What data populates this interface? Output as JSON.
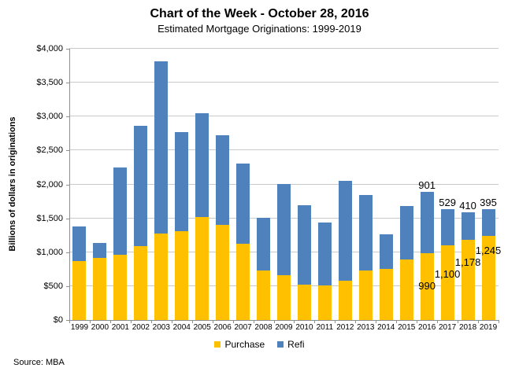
{
  "title": "Chart of the Week - October 28, 2016",
  "subtitle": "Estimated Mortgage Originations: 1999-2019",
  "source": "Source: MBA",
  "colors": {
    "purchase": "#FFC000",
    "refi": "#4F81BD",
    "gridline": "#C9C9C9",
    "axis": "#8E8E8E",
    "text": "#000000"
  },
  "legend": {
    "purchase_label": "Purchase",
    "refi_label": "Refi"
  },
  "chart_data": {
    "type": "bar",
    "stacked": true,
    "title": "Chart of the Week - October 28, 2016",
    "subtitle": "Estimated Mortgage Originations: 1999-2019",
    "xlabel": "",
    "ylabel": "Billions of dollars in originations",
    "ylim": [
      0,
      4000
    ],
    "ytick_interval": 500,
    "ytick_labels": [
      "$0",
      "$500",
      "$1,000",
      "$1,500",
      "$2,000",
      "$2,500",
      "$3,000",
      "$3,500",
      "$4,000"
    ],
    "grid": true,
    "legend_position": "bottom",
    "categories": [
      "1999",
      "2000",
      "2001",
      "2002",
      "2003",
      "2004",
      "2005",
      "2006",
      "2007",
      "2008",
      "2009",
      "2010",
      "2011",
      "2012",
      "2013",
      "2014",
      "2015",
      "2016",
      "2017",
      "2018",
      "2019"
    ],
    "series": [
      {
        "name": "Purchase",
        "color": "#FFC000",
        "values": [
          875,
          915,
          965,
          1095,
          1270,
          1310,
          1520,
          1405,
          1130,
          725,
          660,
          520,
          505,
          585,
          730,
          755,
          895,
          990,
          1100,
          1178,
          1245
        ]
      },
      {
        "name": "Refi",
        "color": "#4F81BD",
        "values": [
          500,
          225,
          1280,
          1770,
          2550,
          1465,
          1525,
          1325,
          1180,
          785,
          1345,
          1175,
          930,
          1470,
          1115,
          505,
          785,
          901,
          529,
          410,
          395
        ]
      }
    ],
    "annotations": {
      "refi_labels": [
        {
          "category": "2016",
          "text": "901"
        },
        {
          "category": "2017",
          "text": "529"
        },
        {
          "category": "2018",
          "text": "410"
        },
        {
          "category": "2019",
          "text": "395"
        }
      ],
      "purchase_labels": [
        {
          "category": "2016",
          "text": "990"
        },
        {
          "category": "2017",
          "text": "1,100"
        },
        {
          "category": "2018",
          "text": "1,178"
        },
        {
          "category": "2019",
          "text": "1,245"
        }
      ]
    }
  }
}
